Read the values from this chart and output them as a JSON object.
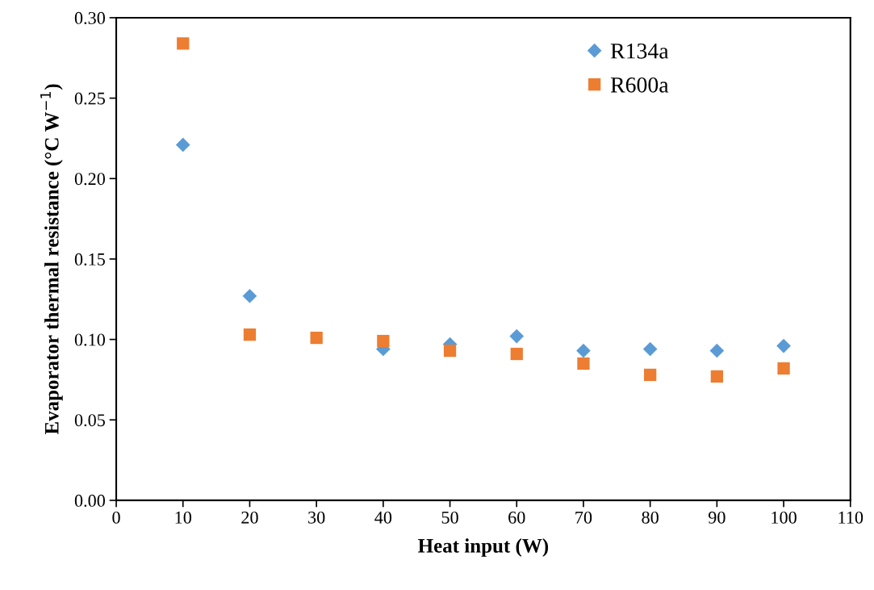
{
  "chart_data": {
    "type": "scatter",
    "xlabel": "Heat input (W)",
    "ylabel": "Evaporator thermal resistance (°C W$^{−1}$)",
    "x": [
      10,
      20,
      30,
      40,
      50,
      60,
      70,
      80,
      90,
      100
    ],
    "series": [
      {
        "name": "R134a",
        "color": "#5b9bd5",
        "marker": "diamond",
        "values": [
          0.221,
          0.127,
          null,
          0.094,
          0.097,
          0.102,
          0.093,
          0.094,
          0.093,
          0.096
        ]
      },
      {
        "name": "R600a",
        "color": "#ed7d31",
        "marker": "square",
        "values": [
          0.284,
          0.103,
          0.101,
          0.099,
          0.093,
          0.091,
          0.085,
          0.078,
          0.077,
          0.082
        ]
      }
    ],
    "xlim": [
      0,
      110
    ],
    "xticks": [
      0,
      10,
      20,
      30,
      40,
      50,
      60,
      70,
      80,
      90,
      100,
      110
    ],
    "ylim": [
      0,
      0.3
    ],
    "yticks": [
      {
        "value": 0,
        "label": "0.00"
      },
      {
        "value": 0.05,
        "label": "0.05"
      },
      {
        "value": 0.1,
        "label": "0.10"
      },
      {
        "value": 0.15,
        "label": "0.15"
      },
      {
        "value": 0.2,
        "label": "0.20"
      },
      {
        "value": 0.25,
        "label": "0.25"
      },
      {
        "value": 0.3,
        "label": "0.30"
      }
    ],
    "grid": false,
    "legend": "top right"
  }
}
